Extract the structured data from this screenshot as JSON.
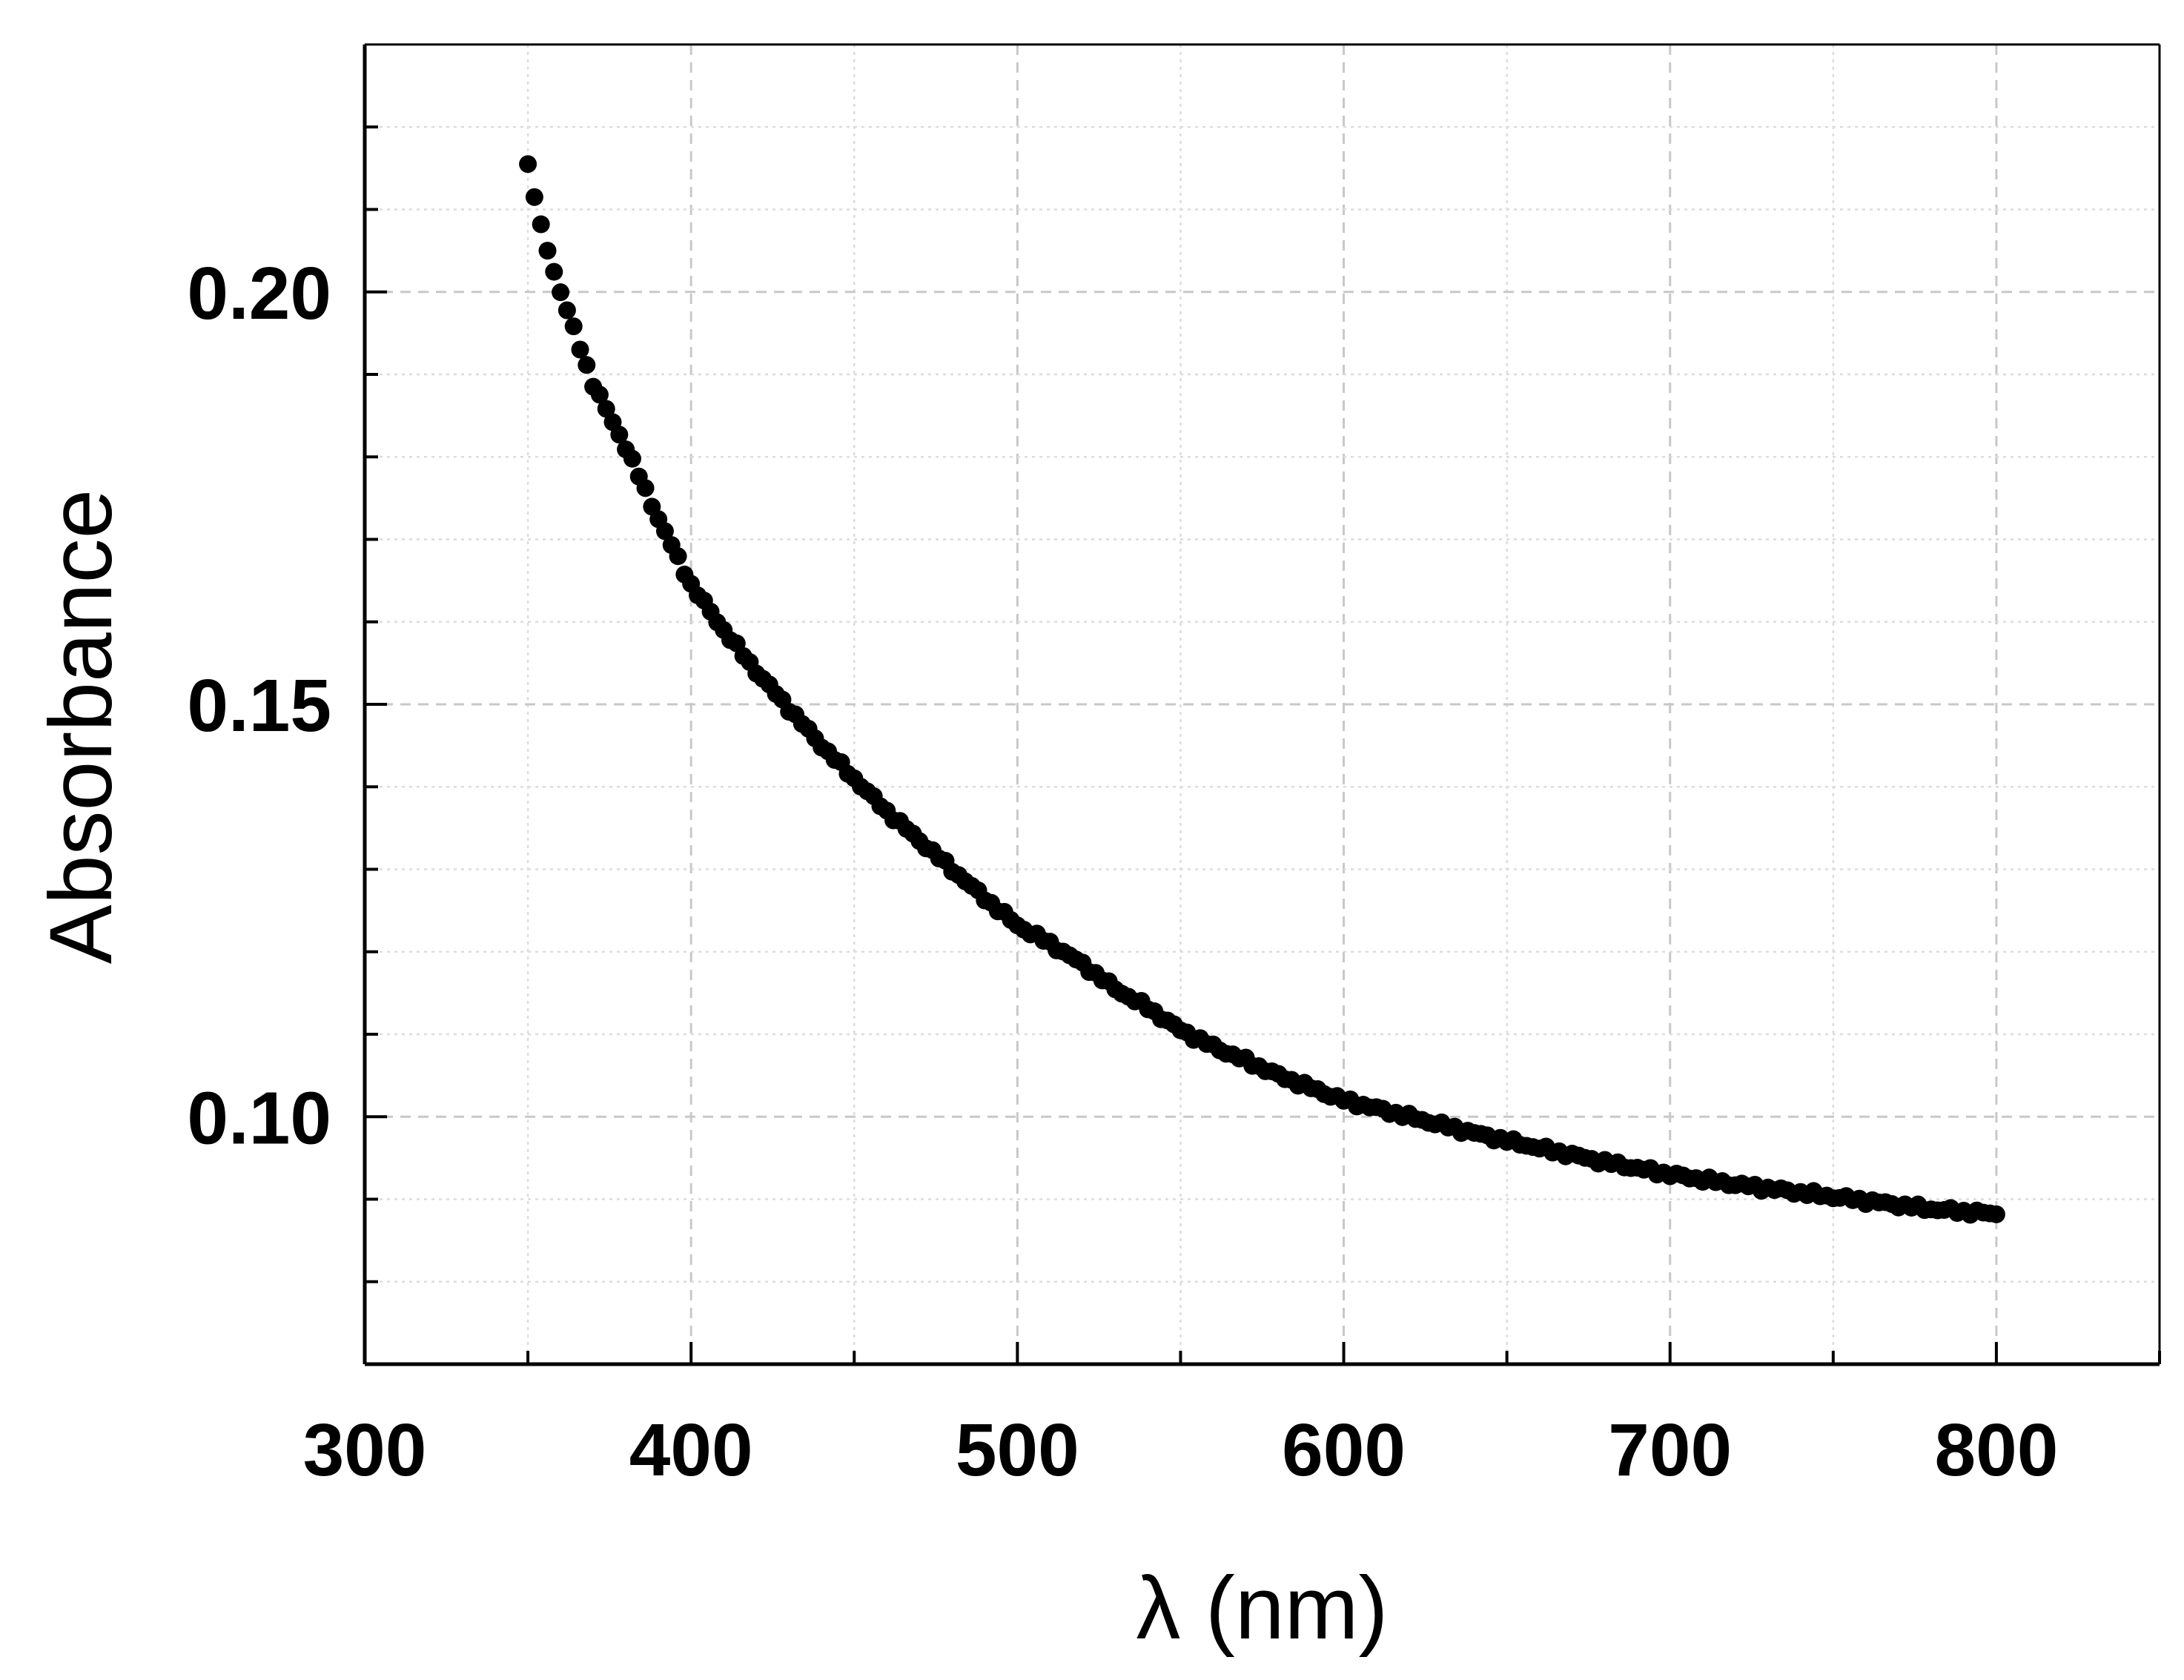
{
  "chart_data": {
    "type": "scatter",
    "title": "",
    "xlabel": "λ (nm)",
    "ylabel": "Absorbance",
    "xlim": [
      300,
      850
    ],
    "ylim": [
      0.07,
      0.23
    ],
    "x_ticks": [
      300,
      400,
      500,
      600,
      700,
      800
    ],
    "x_tick_labels": [
      "300",
      "400",
      "500",
      "600",
      "700",
      "800"
    ],
    "x_minor_step": 50,
    "y_ticks": [
      0.1,
      0.15,
      0.2
    ],
    "y_tick_labels": [
      "0.10",
      "0.15",
      "0.20"
    ],
    "y_minor_step": 0.01,
    "grid": true,
    "marker_color": "#000000",
    "series": [
      {
        "name": "Absorbance",
        "x_start": 350,
        "x_end": 800,
        "x_step": 2,
        "anchors": [
          [
            350,
            0.2155
          ],
          [
            352,
            0.2115
          ],
          [
            354,
            0.2082
          ],
          [
            356,
            0.205
          ],
          [
            360,
            0.2
          ],
          [
            370,
            0.1888
          ],
          [
            380,
            0.1812
          ],
          [
            390,
            0.1725
          ],
          [
            400,
            0.1645
          ],
          [
            410,
            0.159
          ],
          [
            420,
            0.154
          ],
          [
            430,
            0.1495
          ],
          [
            440,
            0.145
          ],
          [
            450,
            0.141
          ],
          [
            460,
            0.137
          ],
          [
            470,
            0.1335
          ],
          [
            480,
            0.13
          ],
          [
            490,
            0.1265
          ],
          [
            500,
            0.1232
          ],
          [
            510,
            0.121
          ],
          [
            520,
            0.1185
          ],
          [
            530,
            0.1155
          ],
          [
            540,
            0.1132
          ],
          [
            550,
            0.1105
          ],
          [
            560,
            0.1085
          ],
          [
            570,
            0.1068
          ],
          [
            580,
            0.105
          ],
          [
            590,
            0.1035
          ],
          [
            600,
            0.102
          ],
          [
            620,
            0.1
          ],
          [
            640,
            0.098
          ],
          [
            660,
            0.0962
          ],
          [
            680,
            0.0945
          ],
          [
            700,
            0.093
          ],
          [
            720,
            0.0918
          ],
          [
            740,
            0.0908
          ],
          [
            760,
            0.0898
          ],
          [
            780,
            0.0888
          ],
          [
            800,
            0.0882
          ]
        ]
      }
    ]
  }
}
